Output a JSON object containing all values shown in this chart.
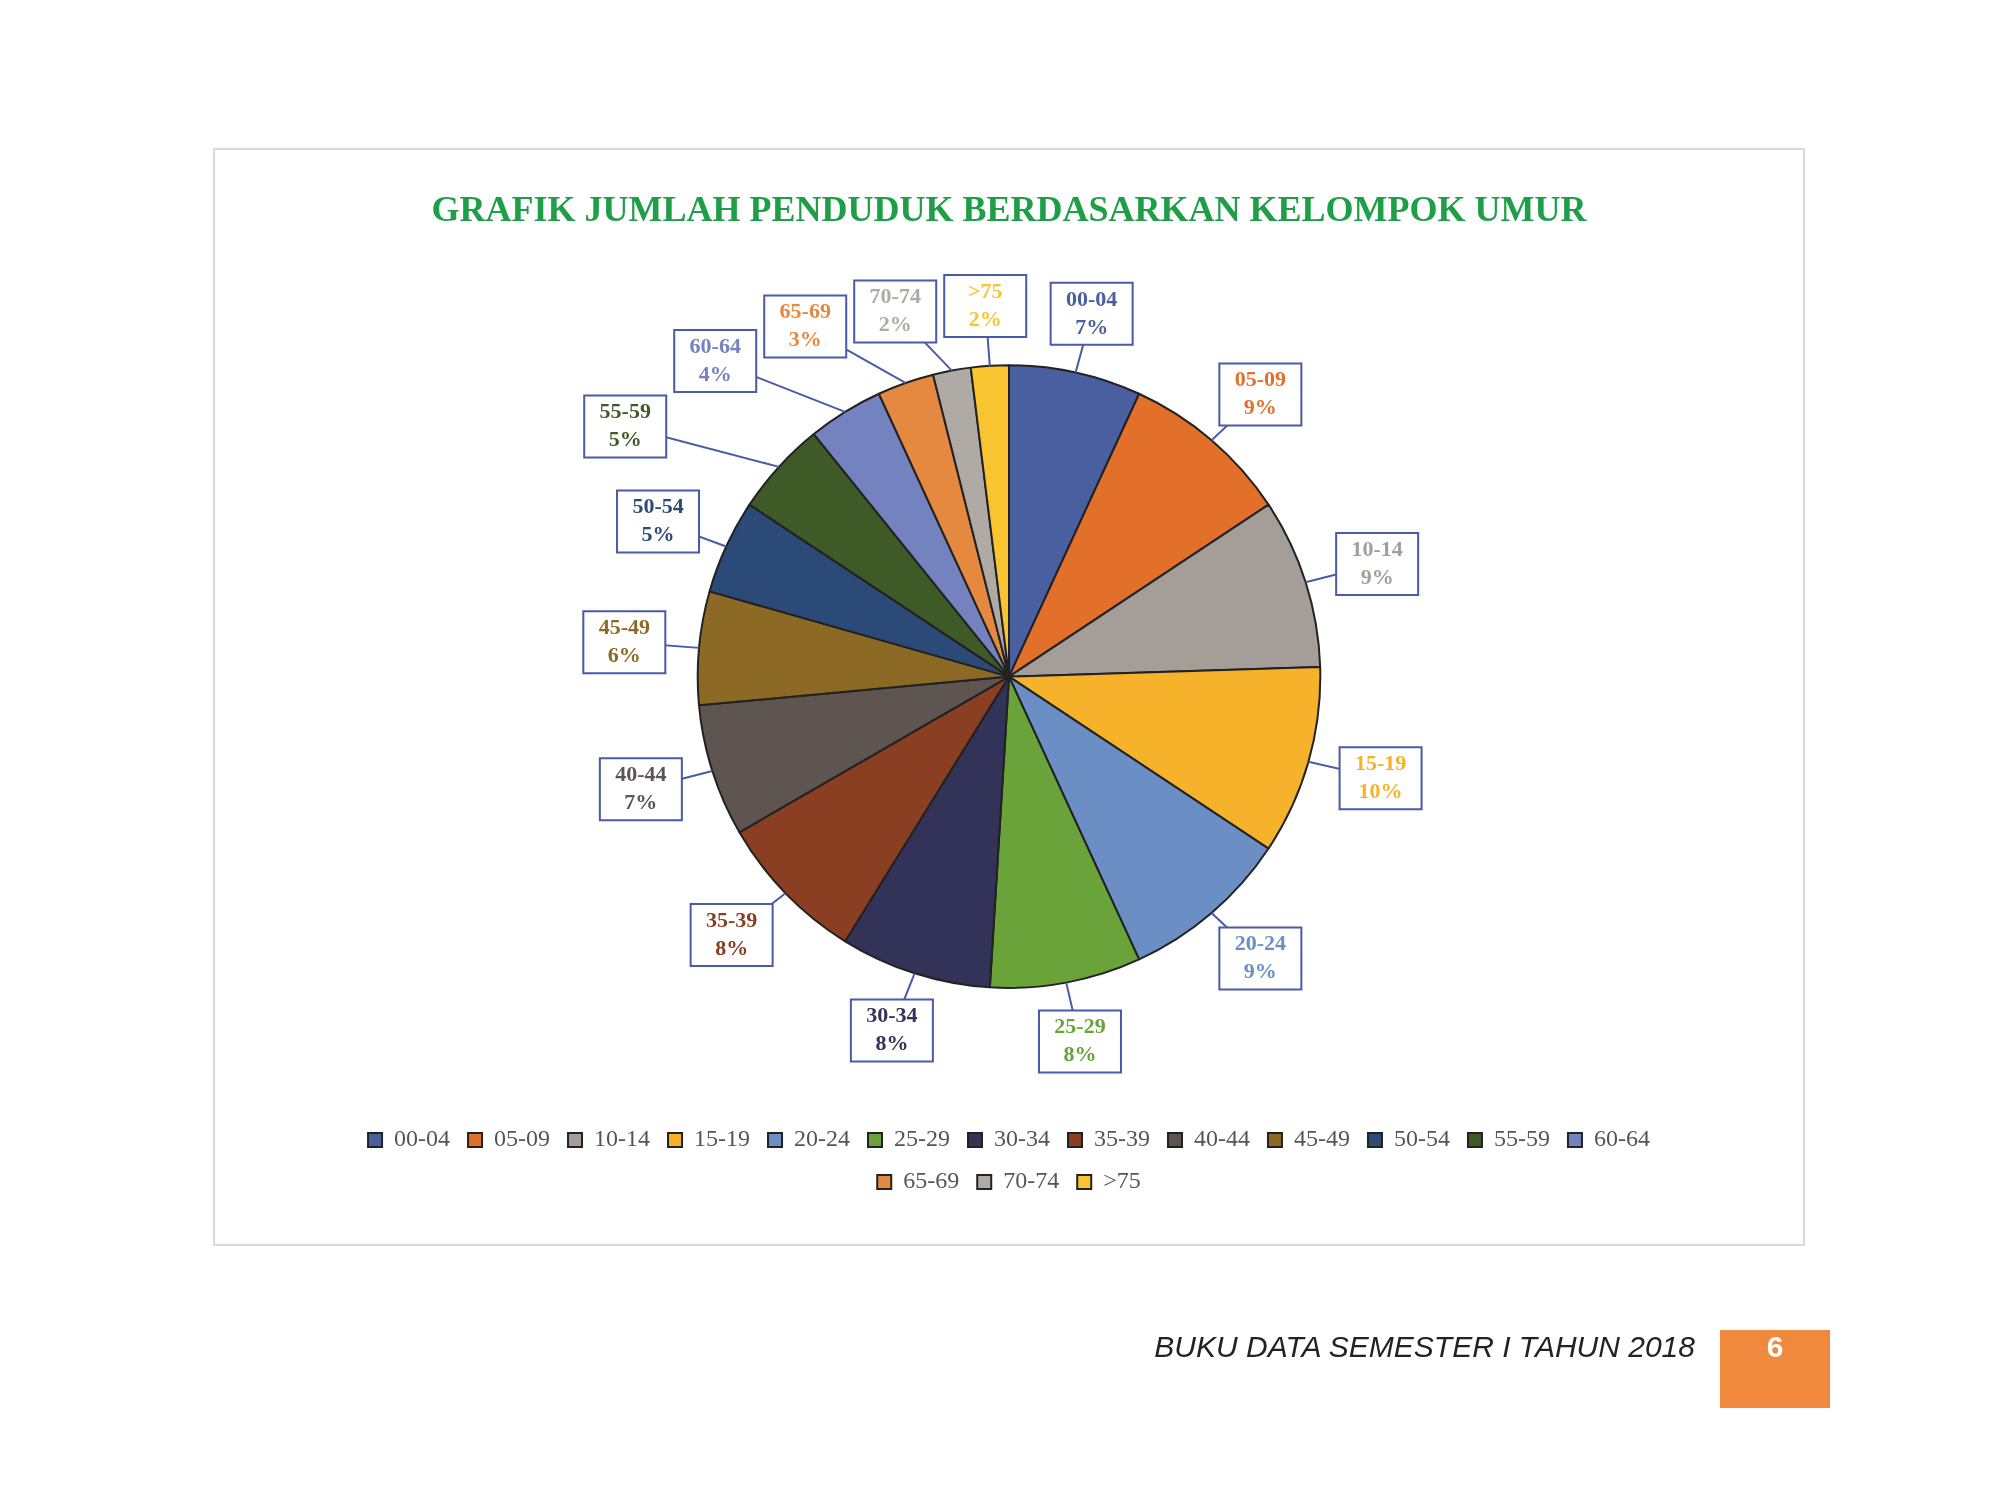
{
  "chart_data": {
    "type": "pie",
    "title": "GRAFIK JUMLAH PENDUDUK BERDASARKAN KELOMPOK UMUR",
    "categories": [
      "00-04",
      "05-09",
      "10-14",
      "15-19",
      "20-24",
      "25-29",
      "30-34",
      "35-39",
      "40-44",
      "45-49",
      "50-54",
      "55-59",
      "60-64",
      "65-69",
      "70-74",
      ">75"
    ],
    "values": [
      7,
      9,
      9,
      10,
      9,
      8,
      8,
      8,
      7,
      6,
      5,
      5,
      4,
      3,
      2,
      2
    ],
    "colors": [
      "#4a5fa0",
      "#e2702a",
      "#a59d97",
      "#f5b22a",
      "#6b8fc4",
      "#6aa33a",
      "#33335a",
      "#8a3e22",
      "#5f5550",
      "#8c6a25",
      "#2c4a78",
      "#3e5a26",
      "#7482bf",
      "#e58840",
      "#b0aaa5",
      "#f8c530"
    ],
    "value_labels": [
      "7%",
      "9%",
      "9%",
      "10%",
      "9%",
      "8%",
      "8%",
      "8%",
      "7%",
      "6%",
      "5%",
      "5%",
      "4%",
      "3%",
      "2%",
      "2%"
    ],
    "legend": "bottom",
    "annotations": [
      "BUKU DATA SEMESTER I TAHUN 2018",
      "6"
    ]
  }
}
